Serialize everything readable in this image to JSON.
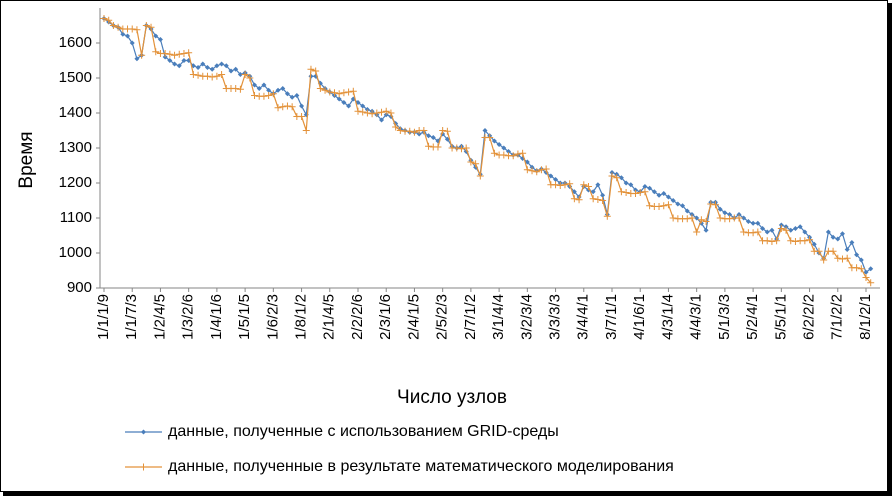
{
  "chart_data": {
    "type": "line",
    "ylabel": "Время",
    "xlabel": "Число узлов",
    "categories": [
      "1/1/1/9",
      null,
      null,
      null,
      null,
      null,
      "1/1/7/3",
      null,
      null,
      null,
      null,
      null,
      "1/2/4/5",
      null,
      null,
      null,
      null,
      null,
      "1/3/2/6",
      null,
      null,
      null,
      null,
      null,
      "1/4/1/6",
      null,
      null,
      null,
      null,
      null,
      "1/5/1/5",
      null,
      null,
      null,
      null,
      null,
      "1/6/2/3",
      null,
      null,
      null,
      null,
      null,
      "1/8/1/2",
      null,
      null,
      null,
      null,
      null,
      "2/1/4/5",
      null,
      null,
      null,
      null,
      null,
      "2/2/2/6",
      null,
      null,
      null,
      null,
      null,
      "2/3/1/6",
      null,
      null,
      null,
      null,
      null,
      "2/4/1/5",
      null,
      null,
      null,
      null,
      null,
      "2/5/2/3",
      null,
      null,
      null,
      null,
      null,
      "2/7/1/2",
      null,
      null,
      null,
      null,
      null,
      "3/1/4/4",
      null,
      null,
      null,
      null,
      null,
      "3/2/3/4",
      null,
      null,
      null,
      null,
      null,
      "3/3/3/3",
      null,
      null,
      null,
      null,
      null,
      "3/4/4/1",
      null,
      null,
      null,
      null,
      null,
      "3/7/1/1",
      null,
      null,
      null,
      null,
      null,
      "4/1/6/1",
      null,
      null,
      null,
      null,
      null,
      "4/3/1/4",
      null,
      null,
      null,
      null,
      null,
      "4/4/3/1",
      null,
      null,
      null,
      null,
      null,
      "5/1/3/3",
      null,
      null,
      null,
      null,
      null,
      "5/2/4/1",
      null,
      null,
      null,
      null,
      null,
      "5/5/1/1",
      null,
      null,
      null,
      null,
      null,
      "6/2/2/2",
      null,
      null,
      null,
      null,
      null,
      "7/1/2/2",
      null,
      null,
      null,
      null,
      null,
      "8/1/2/1",
      null
    ],
    "series": [
      {
        "name": "данные, полученные с использованием GRID-среды",
        "color": "#4a7ebb",
        "marker": "diamond",
        "values": [
          1670,
          1660,
          1650,
          1645,
          1625,
          1620,
          1600,
          1555,
          1565,
          1650,
          1640,
          1620,
          1610,
          1560,
          1550,
          1540,
          1535,
          1550,
          1550,
          1535,
          1530,
          1540,
          1530,
          1525,
          1535,
          1540,
          1535,
          1520,
          1525,
          1510,
          1515,
          1505,
          1480,
          1470,
          1480,
          1465,
          1455,
          1465,
          1470,
          1455,
          1445,
          1450,
          1420,
          1395,
          1505,
          1505,
          1485,
          1470,
          1460,
          1450,
          1440,
          1430,
          1420,
          1440,
          1430,
          1420,
          1410,
          1405,
          1395,
          1380,
          1395,
          1390,
          1370,
          1355,
          1350,
          1345,
          1345,
          1340,
          1345,
          1335,
          1330,
          1320,
          1340,
          1325,
          1305,
          1300,
          1305,
          1290,
          1265,
          1245,
          1225,
          1350,
          1335,
          1320,
          1310,
          1300,
          1290,
          1280,
          1280,
          1270,
          1260,
          1245,
          1235,
          1240,
          1230,
          1220,
          1210,
          1200,
          1200,
          1190,
          1175,
          1160,
          1190,
          1180,
          1175,
          1195,
          1165,
          1110,
          1230,
          1225,
          1215,
          1200,
          1195,
          1180,
          1175,
          1190,
          1185,
          1175,
          1165,
          1170,
          1160,
          1150,
          1140,
          1135,
          1120,
          1110,
          1100,
          1085,
          1065,
          1145,
          1145,
          1125,
          1115,
          1110,
          1100,
          1110,
          1100,
          1090,
          1085,
          1085,
          1070,
          1060,
          1065,
          1040,
          1080,
          1075,
          1065,
          1070,
          1075,
          1060,
          1045,
          1025,
          1000,
          985,
          1060,
          1045,
          1040,
          1055,
          1010,
          1030,
          995,
          980,
          945,
          955
        ]
      },
      {
        "name": "данные, полученные в результате математического моделирования",
        "color": "#e3923a",
        "marker": "plus",
        "values": [
          1670,
          1665,
          1650,
          1645,
          1640,
          1640,
          1640,
          1638,
          1565,
          1650,
          1645,
          1575,
          1570,
          1570,
          1568,
          1565,
          1568,
          1570,
          1572,
          1510,
          1508,
          1505,
          1505,
          1503,
          1505,
          1510,
          1470,
          1470,
          1470,
          1468,
          1510,
          1500,
          1450,
          1448,
          1448,
          1450,
          1455,
          1415,
          1418,
          1420,
          1418,
          1390,
          1390,
          1350,
          1525,
          1520,
          1470,
          1465,
          1460,
          1458,
          1455,
          1458,
          1460,
          1462,
          1405,
          1403,
          1400,
          1398,
          1400,
          1402,
          1405,
          1400,
          1360,
          1350,
          1348,
          1348,
          1345,
          1350,
          1350,
          1305,
          1303,
          1303,
          1350,
          1348,
          1300,
          1300,
          1298,
          1300,
          1260,
          1255,
          1220,
          1330,
          1330,
          1285,
          1280,
          1280,
          1278,
          1278,
          1283,
          1285,
          1238,
          1235,
          1232,
          1238,
          1240,
          1195,
          1195,
          1193,
          1195,
          1198,
          1155,
          1152,
          1195,
          1190,
          1155,
          1153,
          1150,
          1105,
          1220,
          1215,
          1175,
          1173,
          1170,
          1170,
          1173,
          1175,
          1135,
          1133,
          1133,
          1135,
          1138,
          1100,
          1098,
          1098,
          1098,
          1100,
          1060,
          1095,
          1090,
          1140,
          1138,
          1100,
          1098,
          1098,
          1100,
          1100,
          1060,
          1058,
          1058,
          1060,
          1035,
          1035,
          1033,
          1035,
          1070,
          1065,
          1035,
          1033,
          1035,
          1035,
          1038,
          1005,
          1005,
          980,
          1005,
          1005,
          985,
          983,
          985,
          958,
          958,
          955,
          930,
          915
        ]
      }
    ],
    "ylim": [
      900,
      1700
    ],
    "yticks": [
      900,
      1000,
      1100,
      1200,
      1300,
      1400,
      1500,
      1600
    ],
    "grid": false
  }
}
